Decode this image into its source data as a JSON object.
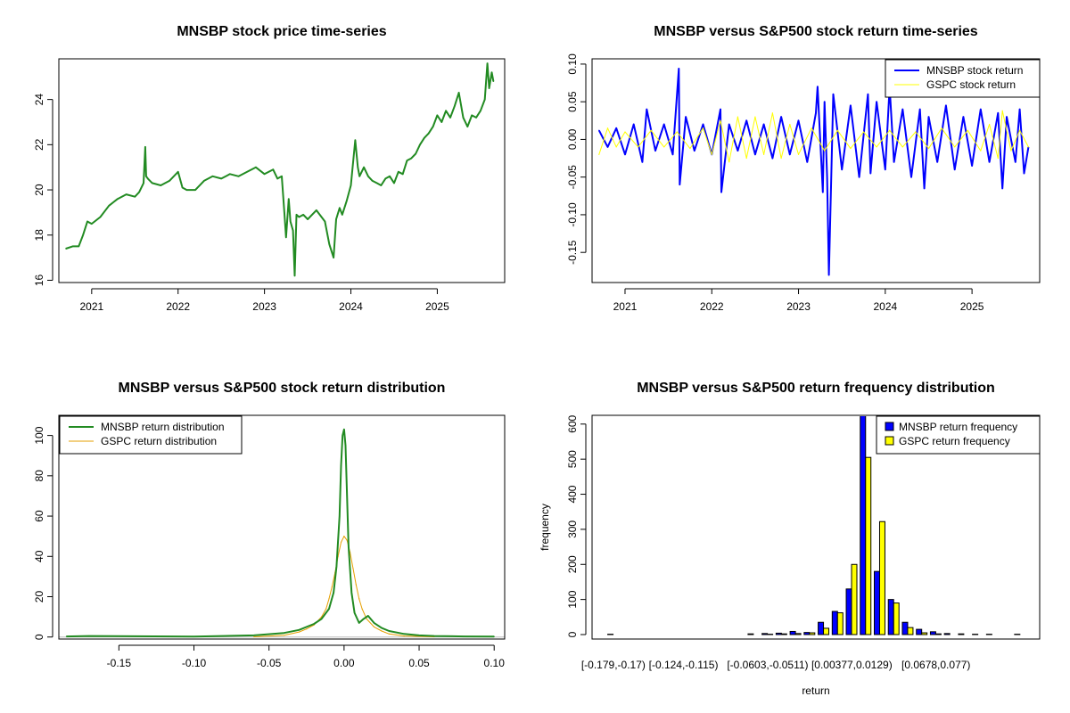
{
  "chart_data": [
    {
      "id": "price",
      "type": "line",
      "title": "MNSBP stock price time-series",
      "xlabel": "",
      "ylabel": "",
      "xlim": [
        2020.62,
        2025.78
      ],
      "ylim": [
        15.9,
        25.8
      ],
      "xticks": [
        2021,
        2022,
        2023,
        2024,
        2025
      ],
      "xtick_labels": [
        "2021",
        "2022",
        "2023",
        "2024",
        "2025"
      ],
      "yticks": [
        16,
        18,
        20,
        22,
        24
      ],
      "ytick_labels": [
        "16",
        "18",
        "20",
        "22",
        "24"
      ],
      "series": [
        {
          "name": "MNSBP stock price",
          "color": "#228B22",
          "x": [
            2020.7,
            2020.78,
            2020.85,
            2020.9,
            2020.95,
            2021.0,
            2021.1,
            2021.2,
            2021.3,
            2021.4,
            2021.5,
            2021.55,
            2021.6,
            2021.62,
            2021.63,
            2021.65,
            2021.7,
            2021.8,
            2021.9,
            2022.0,
            2022.05,
            2022.1,
            2022.2,
            2022.3,
            2022.4,
            2022.5,
            2022.6,
            2022.7,
            2022.8,
            2022.9,
            2023.0,
            2023.1,
            2023.15,
            2023.2,
            2023.23,
            2023.25,
            2023.28,
            2023.3,
            2023.33,
            2023.35,
            2023.37,
            2023.4,
            2023.45,
            2023.5,
            2023.6,
            2023.7,
            2023.75,
            2023.8,
            2023.83,
            2023.87,
            2023.9,
            2023.95,
            2024.0,
            2024.05,
            2024.08,
            2024.1,
            2024.15,
            2024.2,
            2024.25,
            2024.3,
            2024.35,
            2024.4,
            2024.45,
            2024.5,
            2024.55,
            2024.6,
            2024.65,
            2024.7,
            2024.75,
            2024.8,
            2024.85,
            2024.9,
            2024.95,
            2025.0,
            2025.05,
            2025.1,
            2025.15,
            2025.2,
            2025.25,
            2025.3,
            2025.35,
            2025.4,
            2025.45,
            2025.5,
            2025.55,
            2025.58,
            2025.6,
            2025.63,
            2025.65
          ],
          "values": [
            17.4,
            17.5,
            17.5,
            18.0,
            18.6,
            18.5,
            18.8,
            19.3,
            19.6,
            19.8,
            19.7,
            19.9,
            20.3,
            21.9,
            20.6,
            20.5,
            20.3,
            20.2,
            20.4,
            20.8,
            20.1,
            20.0,
            20.0,
            20.4,
            20.6,
            20.5,
            20.7,
            20.6,
            20.8,
            21.0,
            20.7,
            20.9,
            20.5,
            20.6,
            19.0,
            17.9,
            19.6,
            18.6,
            18.2,
            16.2,
            18.9,
            18.8,
            18.9,
            18.7,
            19.1,
            18.6,
            17.6,
            17.0,
            18.7,
            19.2,
            18.9,
            19.5,
            20.2,
            22.2,
            21.0,
            20.6,
            21.0,
            20.6,
            20.4,
            20.3,
            20.2,
            20.5,
            20.6,
            20.3,
            20.8,
            20.7,
            21.3,
            21.4,
            21.6,
            22.0,
            22.3,
            22.5,
            22.8,
            23.3,
            23.0,
            23.5,
            23.2,
            23.7,
            24.3,
            23.2,
            22.8,
            23.3,
            23.2,
            23.5,
            24.0,
            25.6,
            24.5,
            25.2,
            24.8
          ]
        }
      ]
    },
    {
      "id": "returns",
      "type": "line",
      "title": "MNSBP versus S&P500 stock return time-series",
      "xlabel": "",
      "ylabel": "",
      "xlim": [
        2020.62,
        2025.78
      ],
      "ylim": [
        -0.19,
        0.107
      ],
      "xticks": [
        2021,
        2022,
        2023,
        2024,
        2025
      ],
      "xtick_labels": [
        "2021",
        "2022",
        "2023",
        "2024",
        "2025"
      ],
      "yticks": [
        -0.15,
        -0.1,
        -0.05,
        0.0,
        0.05,
        0.1
      ],
      "ytick_labels": [
        "-0.15",
        "-0.10",
        "-0.05",
        "0.00",
        "0.05",
        "0.10"
      ],
      "legend": [
        "MNSBP stock return",
        "GSPC stock return"
      ],
      "legend_position": "top-right",
      "series": [
        {
          "name": "MNSBP stock return",
          "color": "#0000FF",
          "x": [
            2020.7,
            2020.8,
            2020.9,
            2021.0,
            2021.1,
            2021.2,
            2021.25,
            2021.35,
            2021.45,
            2021.55,
            2021.62,
            2021.63,
            2021.7,
            2021.8,
            2021.9,
            2022.0,
            2022.1,
            2022.11,
            2022.2,
            2022.3,
            2022.4,
            2022.5,
            2022.6,
            2022.7,
            2022.8,
            2022.9,
            2023.0,
            2023.1,
            2023.2,
            2023.22,
            2023.28,
            2023.3,
            2023.33,
            2023.35,
            2023.4,
            2023.5,
            2023.6,
            2023.7,
            2023.8,
            2023.83,
            2023.9,
            2024.0,
            2024.05,
            2024.1,
            2024.2,
            2024.3,
            2024.4,
            2024.45,
            2024.5,
            2024.6,
            2024.7,
            2024.8,
            2024.9,
            2025.0,
            2025.1,
            2025.2,
            2025.3,
            2025.35,
            2025.4,
            2025.5,
            2025.55,
            2025.6,
            2025.65
          ],
          "values": [
            0.012,
            -0.01,
            0.015,
            -0.02,
            0.02,
            -0.03,
            0.04,
            -0.015,
            0.02,
            -0.02,
            0.094,
            -0.06,
            0.03,
            -0.015,
            0.02,
            -0.02,
            0.04,
            -0.07,
            0.02,
            -0.015,
            0.025,
            -0.02,
            0.02,
            -0.025,
            0.03,
            -0.02,
            0.025,
            -0.03,
            0.035,
            0.07,
            -0.07,
            0.05,
            -0.05,
            -0.18,
            0.06,
            -0.04,
            0.045,
            -0.05,
            0.06,
            -0.045,
            0.05,
            -0.04,
            0.07,
            -0.03,
            0.04,
            -0.05,
            0.04,
            -0.065,
            0.03,
            -0.03,
            0.045,
            -0.04,
            0.03,
            -0.035,
            0.04,
            -0.03,
            0.035,
            -0.065,
            0.03,
            -0.03,
            0.04,
            -0.045,
            -0.01
          ]
        },
        {
          "name": "GSPC stock return",
          "color": "#FFFF00",
          "x": [
            2020.7,
            2020.8,
            2020.9,
            2021.0,
            2021.15,
            2021.3,
            2021.45,
            2021.6,
            2021.75,
            2021.9,
            2022.0,
            2022.1,
            2022.2,
            2022.3,
            2022.4,
            2022.5,
            2022.6,
            2022.7,
            2022.8,
            2022.9,
            2023.0,
            2023.15,
            2023.3,
            2023.45,
            2023.6,
            2023.75,
            2023.9,
            2024.05,
            2024.2,
            2024.35,
            2024.5,
            2024.65,
            2024.8,
            2024.95,
            2025.1,
            2025.2,
            2025.3,
            2025.35,
            2025.45,
            2025.55,
            2025.65
          ],
          "values": [
            -0.02,
            0.015,
            -0.01,
            0.01,
            -0.01,
            0.012,
            -0.01,
            0.01,
            -0.012,
            0.015,
            -0.02,
            0.025,
            -0.03,
            0.03,
            -0.025,
            0.03,
            -0.02,
            0.035,
            -0.025,
            0.02,
            -0.02,
            0.015,
            -0.015,
            0.012,
            -0.012,
            0.01,
            -0.01,
            0.012,
            -0.01,
            0.01,
            -0.012,
            0.015,
            -0.01,
            0.012,
            -0.015,
            0.02,
            -0.025,
            0.038,
            -0.015,
            0.012,
            -0.01
          ]
        }
      ]
    },
    {
      "id": "density",
      "type": "line",
      "title": "MNSBP versus S&P500 stock return distribution",
      "xlabel": "",
      "ylabel": "",
      "xlim": [
        -0.19,
        0.107
      ],
      "ylim": [
        -1,
        110
      ],
      "xticks": [
        -0.15,
        -0.1,
        -0.05,
        0.0,
        0.05,
        0.1
      ],
      "xtick_labels": [
        "-0.15",
        "-0.10",
        "-0.05",
        "0.00",
        "0.05",
        "0.10"
      ],
      "yticks": [
        0,
        20,
        40,
        60,
        80,
        100
      ],
      "ytick_labels": [
        "0",
        "20",
        "40",
        "60",
        "80",
        "100"
      ],
      "legend": [
        "MNSBP return distribution",
        "GSPC return distribution"
      ],
      "legend_position": "top-left",
      "series": [
        {
          "name": "MNSBP return distribution",
          "color": "#228B22",
          "x": [
            -0.185,
            -0.17,
            -0.1,
            -0.06,
            -0.04,
            -0.03,
            -0.02,
            -0.015,
            -0.01,
            -0.007,
            -0.005,
            -0.003,
            -0.002,
            -0.001,
            0.0,
            0.001,
            0.002,
            0.003,
            0.005,
            0.007,
            0.01,
            0.013,
            0.016,
            0.02,
            0.025,
            0.03,
            0.04,
            0.05,
            0.06,
            0.08,
            0.1
          ],
          "values": [
            0.3,
            0.5,
            0.2,
            0.8,
            2.0,
            3.5,
            6.5,
            9.0,
            14.0,
            22.0,
            35.0,
            60.0,
            85.0,
            100.0,
            103.0,
            95.0,
            70.0,
            45.0,
            22.0,
            12.0,
            7.0,
            9.0,
            10.5,
            7.0,
            4.5,
            3.0,
            1.5,
            0.8,
            0.5,
            0.3,
            0.2
          ]
        },
        {
          "name": "GSPC return distribution",
          "color": "#E69F00",
          "x": [
            -0.06,
            -0.04,
            -0.03,
            -0.025,
            -0.02,
            -0.015,
            -0.012,
            -0.01,
            -0.008,
            -0.006,
            -0.004,
            -0.002,
            0.0,
            0.002,
            0.004,
            0.006,
            0.008,
            0.01,
            0.012,
            0.015,
            0.02,
            0.025,
            0.03,
            0.04,
            0.06
          ],
          "values": [
            0.1,
            0.8,
            2.5,
            4.0,
            6.0,
            10.0,
            14.0,
            19.0,
            25.0,
            32.0,
            40.0,
            47.0,
            50.0,
            48.0,
            42.0,
            34.0,
            26.0,
            19.0,
            14.0,
            9.0,
            5.0,
            3.0,
            1.5,
            0.5,
            0.1
          ]
        }
      ]
    },
    {
      "id": "histogram",
      "type": "bar",
      "title": "MNSBP versus S&P500 return frequency distribution",
      "xlabel": "return",
      "ylabel": "frequency",
      "ylim": [
        0,
        630
      ],
      "yticks": [
        0,
        100,
        200,
        300,
        400,
        500,
        600
      ],
      "ytick_labels": [
        "0",
        "100",
        "200",
        "300",
        "400",
        "500",
        "600"
      ],
      "categories": [
        "[-0.179,-0.17)",
        "",
        "",
        "",
        "",
        "[-0.124,-0.115)",
        "",
        "",
        "",
        "",
        "",
        "[-0.0603,-0.0511)",
        "",
        "",
        "",
        "",
        "",
        "[0.00377,0.0129)",
        "",
        "",
        "",
        "",
        "",
        "[0.0678,0.077)",
        "",
        "",
        "",
        "",
        "",
        ""
      ],
      "visible_category_labels": [
        "[-0.179,-0.17)",
        "[-0.124,-0.115)",
        "[-0.0603,-0.0511)",
        "[0.00377,0.0129)",
        "[0.0678,0.077)"
      ],
      "legend": [
        "MNSBP return frequency",
        "GSPC return frequency"
      ],
      "legend_position": "top-right",
      "series": [
        {
          "name": "MNSBP return frequency",
          "color": "#0000FF",
          "values": [
            1,
            0,
            0,
            0,
            0,
            0,
            0,
            0,
            0,
            0,
            2,
            3,
            4,
            9,
            6,
            35,
            66,
            130,
            629,
            180,
            100,
            35,
            15,
            8,
            3,
            2,
            1,
            1,
            0,
            1
          ]
        },
        {
          "name": "GSPC return frequency",
          "color": "#FFFF00",
          "values": [
            0,
            0,
            0,
            0,
            0,
            0,
            0,
            0,
            0,
            0,
            0,
            1,
            2,
            3,
            5,
            18,
            62,
            200,
            505,
            322,
            90,
            20,
            5,
            2,
            0,
            0,
            0,
            0,
            0,
            0
          ]
        }
      ]
    }
  ]
}
